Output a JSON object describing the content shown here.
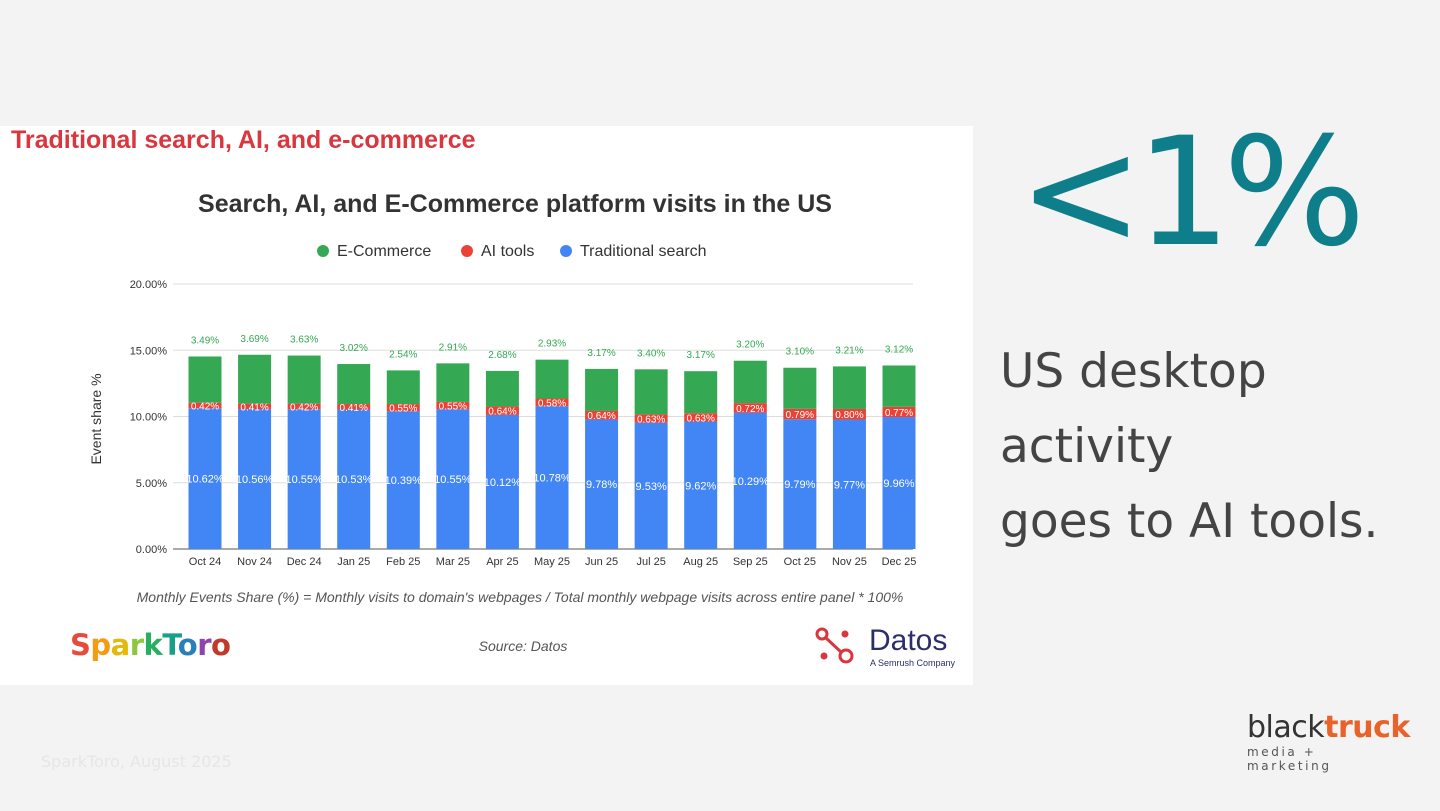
{
  "section_heading": "Traditional search, AI, and e-commerce",
  "chart_data": {
    "type": "bar",
    "stacked": true,
    "title": "Search, AI, and E-Commerce platform visits in the US",
    "ylabel": "Event share %",
    "xlabel": "",
    "ylim": [
      0,
      20
    ],
    "y_ticks": [
      "0.00%",
      "5.00%",
      "10.00%",
      "15.00%",
      "20.00%"
    ],
    "grid": true,
    "legend_position": "top",
    "categories": [
      "Oct 24",
      "Nov 24",
      "Dec 24",
      "Jan 25",
      "Feb 25",
      "Mar 25",
      "Apr 25",
      "May 25",
      "Jun 25",
      "Jul 25",
      "Aug 25",
      "Sep 25",
      "Oct 25",
      "Nov 25",
      "Dec 25"
    ],
    "series": [
      {
        "name": "Traditional search",
        "color": "#4285f4",
        "values": [
          10.62,
          10.56,
          10.55,
          10.53,
          10.39,
          10.55,
          10.12,
          10.78,
          9.78,
          9.53,
          9.62,
          10.29,
          9.79,
          9.77,
          9.96
        ]
      },
      {
        "name": "AI tools",
        "color": "#ea4335",
        "values": [
          0.42,
          0.41,
          0.42,
          0.41,
          0.55,
          0.55,
          0.64,
          0.58,
          0.64,
          0.63,
          0.63,
          0.72,
          0.79,
          0.8,
          0.77
        ]
      },
      {
        "name": "E-Commerce",
        "color": "#34a853",
        "values": [
          3.49,
          3.69,
          3.63,
          3.02,
          2.54,
          2.91,
          2.68,
          2.93,
          3.17,
          3.4,
          3.17,
          3.2,
          3.1,
          3.21,
          3.12
        ]
      }
    ],
    "legend_order": [
      "E-Commerce",
      "AI tools",
      "Traditional search"
    ],
    "formula_note": "Monthly Events Share (%) = Monthly visits to domain's webpages / Total monthly webpage visits across entire panel * 100%",
    "source": "Source: Datos"
  },
  "logos": {
    "sparktoro": "SparkToro",
    "datos": "Datos",
    "datos_tagline": "A Semrush Company",
    "blacktruck_black": "black",
    "blacktruck_orange": "truck",
    "blacktruck_sub": "media + marketing"
  },
  "stat": {
    "value": "<1%",
    "caption_line1": "US desktop activity",
    "caption_line2": "goes to AI tools."
  },
  "footer": {
    "source": "SparkToro, August 2025"
  },
  "colors": {
    "accent_teal": "#0e7f8a",
    "heading_red": "#d9363e",
    "brand_orange": "#e8622a"
  }
}
